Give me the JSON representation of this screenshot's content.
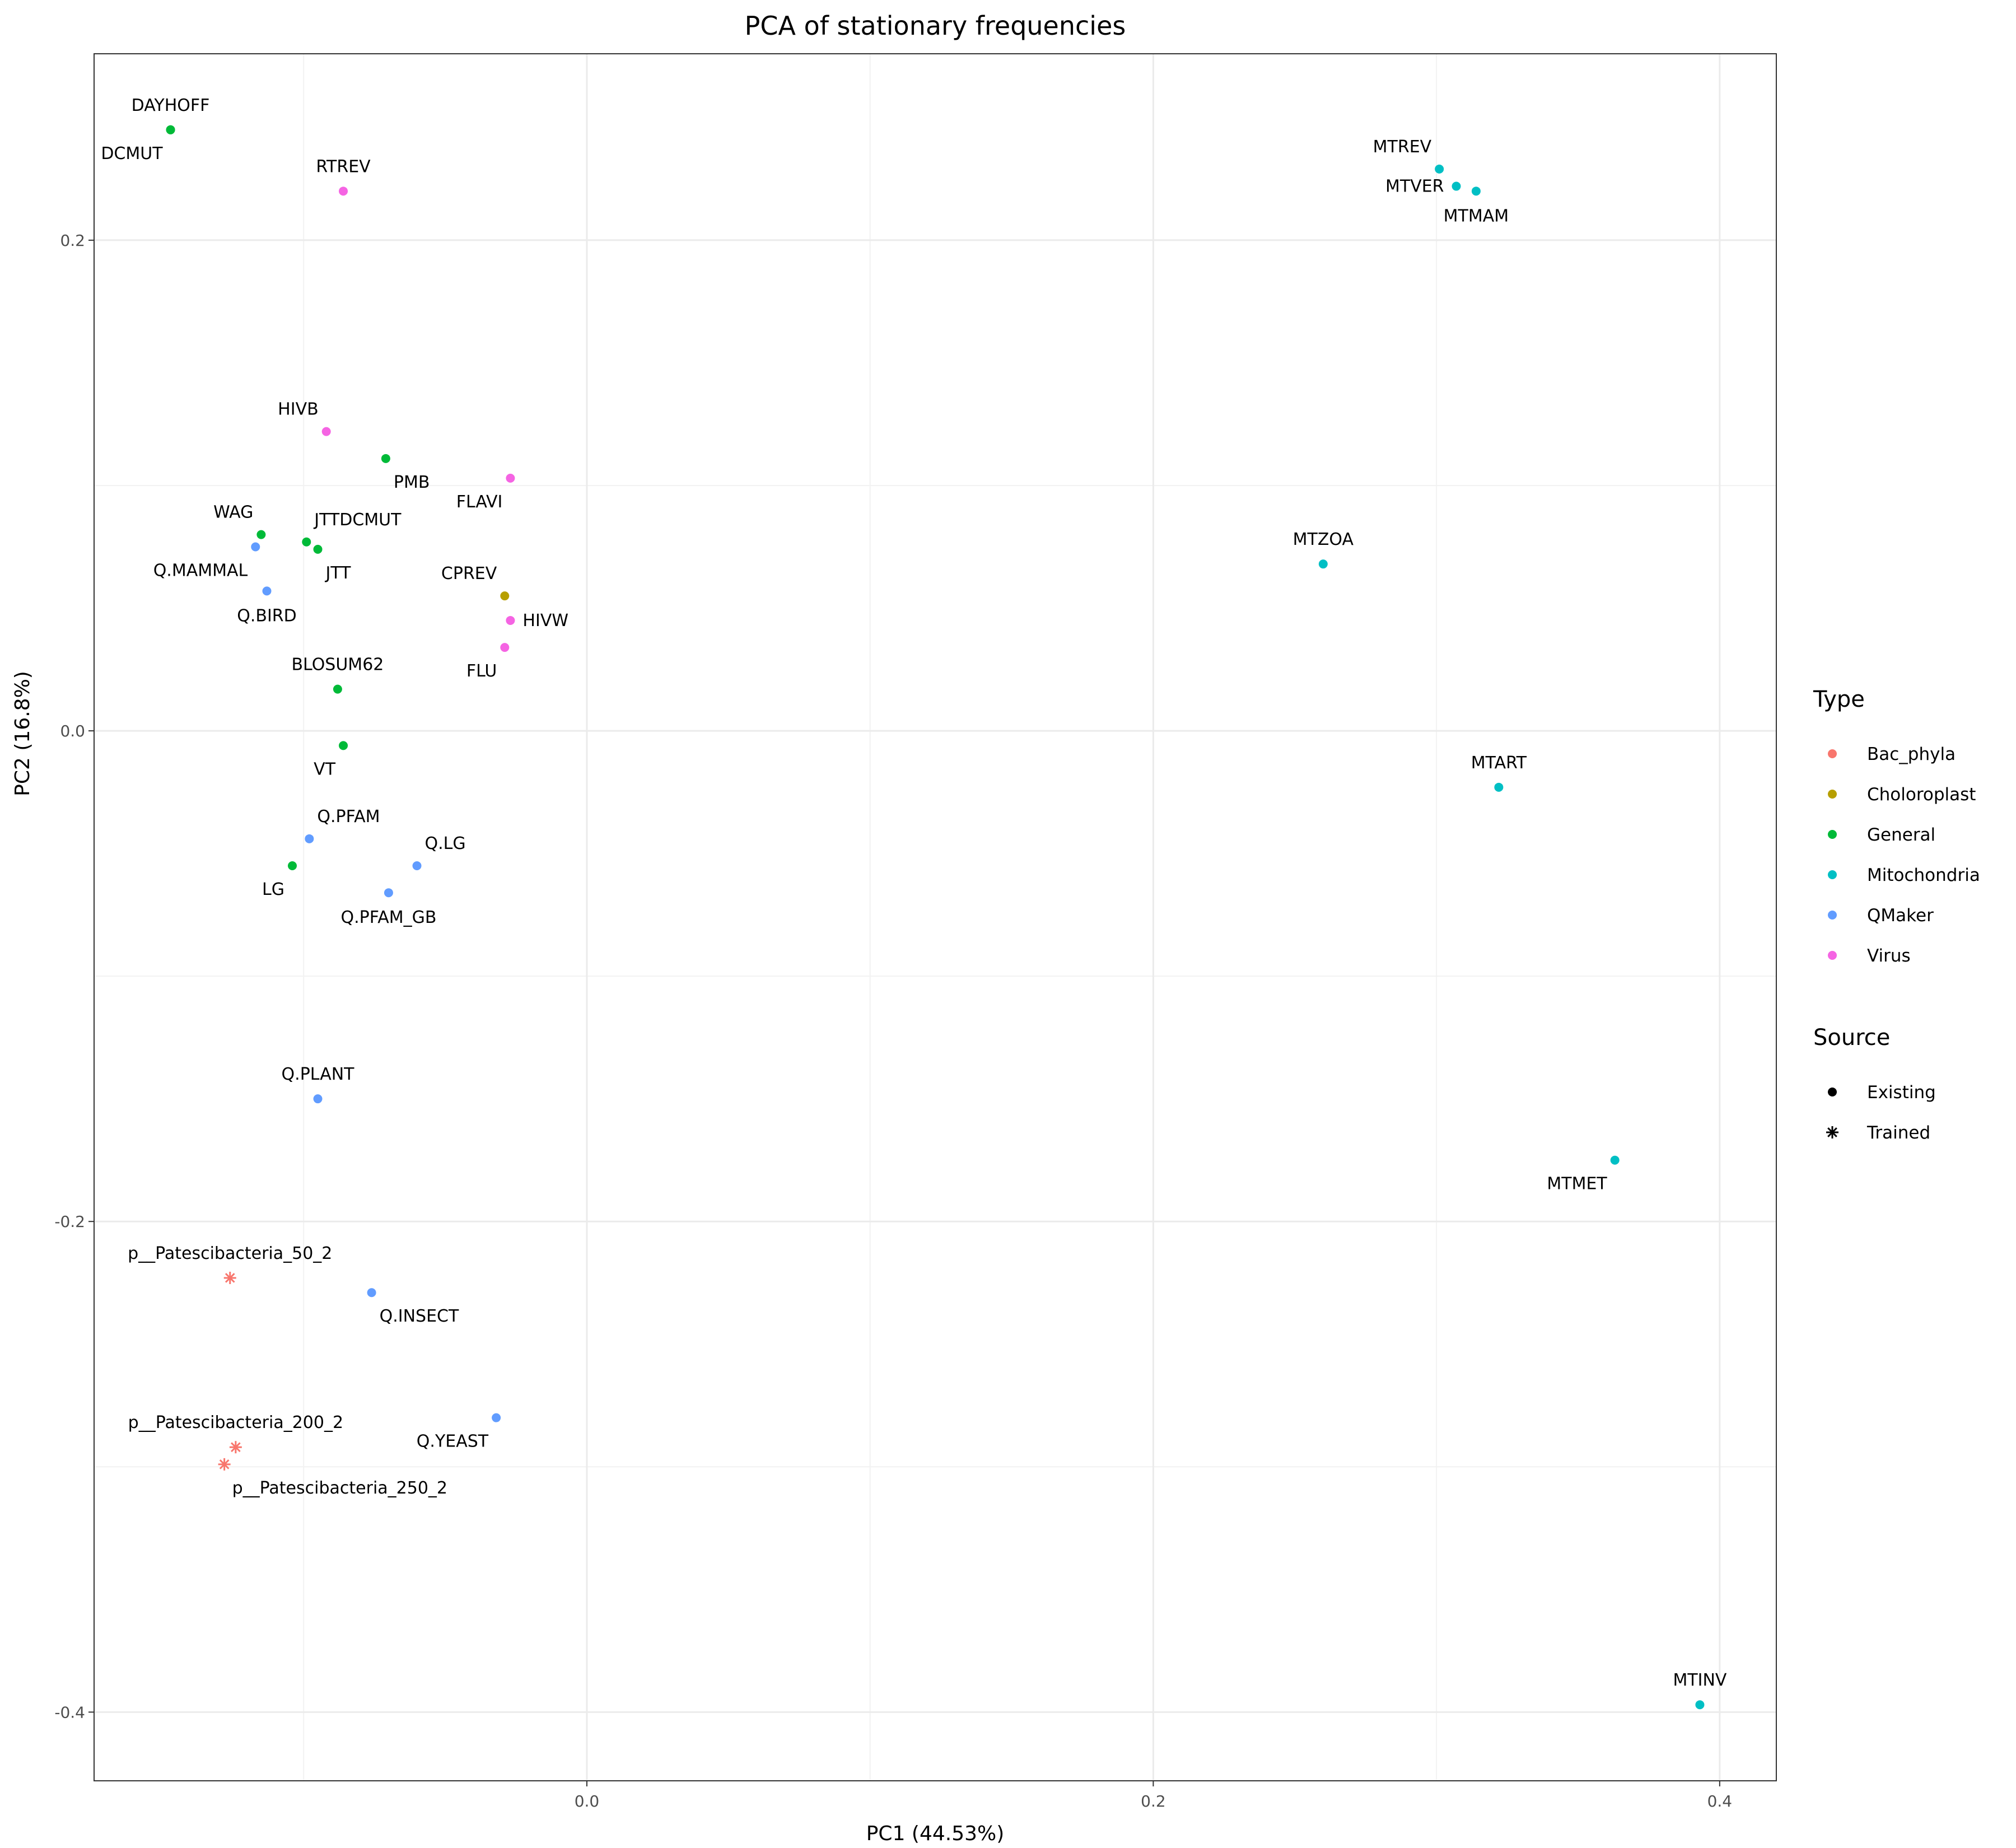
{
  "chart_data": {
    "type": "scatter",
    "title": "PCA of stationary frequencies",
    "xlabel": "PC1 (44.53%)",
    "ylabel": "PC2 (16.8%)",
    "xlim": [
      -0.174,
      0.42
    ],
    "ylim": [
      -0.428,
      0.276
    ],
    "x_ticks": [
      {
        "v": 0,
        "label": "0.0"
      },
      {
        "v": 0.2,
        "label": "0.2"
      },
      {
        "v": 0.4,
        "label": "0.4"
      }
    ],
    "y_ticks": [
      {
        "v": 0.2,
        "label": "0.2"
      },
      {
        "v": 0,
        "label": "0.0"
      },
      {
        "v": -0.2,
        "label": "-0.2"
      },
      {
        "v": -0.4,
        "label": "-0.4"
      }
    ],
    "x_minor": [
      -0.1,
      0.1,
      0.3
    ],
    "y_minor": [
      0.1,
      -0.1,
      -0.3
    ],
    "grid": true,
    "legend_position": "right",
    "type_legend": {
      "title": "Type",
      "items": [
        {
          "name": "Bac_phyla",
          "color": "#F8766D"
        },
        {
          "name": "Choloroplast",
          "color": "#B79F00"
        },
        {
          "name": "General",
          "color": "#00BA38"
        },
        {
          "name": "Mitochondria",
          "color": "#00BFC4"
        },
        {
          "name": "QMaker",
          "color": "#619CFF"
        },
        {
          "name": "Virus",
          "color": "#F564E3"
        }
      ]
    },
    "source_legend": {
      "title": "Source",
      "items": [
        {
          "name": "Existing",
          "shape": "dot"
        },
        {
          "name": "Trained",
          "shape": "asterisk"
        }
      ]
    },
    "points": [
      {
        "label": "DAYHOFF",
        "x": -0.147,
        "y": 0.245,
        "type": "General",
        "source": "Existing",
        "pos": "above"
      },
      {
        "label": "DCMUT",
        "x": -0.147,
        "y": 0.245,
        "type": "General",
        "source": "Existing",
        "pos": "below-left"
      },
      {
        "label": "RTREV",
        "x": -0.086,
        "y": 0.22,
        "type": "Virus",
        "source": "Existing",
        "pos": "above"
      },
      {
        "label": "HIVB",
        "x": -0.092,
        "y": 0.122,
        "type": "Virus",
        "source": "Existing",
        "pos": "above-left"
      },
      {
        "label": "PMB",
        "x": -0.071,
        "y": 0.111,
        "type": "General",
        "source": "Existing",
        "pos": "below-right"
      },
      {
        "label": "FLAVI",
        "x": -0.027,
        "y": 0.103,
        "type": "Virus",
        "source": "Existing",
        "pos": "below-left"
      },
      {
        "label": "WAG",
        "x": -0.115,
        "y": 0.08,
        "type": "General",
        "source": "Existing",
        "pos": "above-left"
      },
      {
        "label": "JTTDCMUT",
        "x": -0.099,
        "y": 0.077,
        "type": "General",
        "source": "Existing",
        "pos": "above-right"
      },
      {
        "label": "JTT",
        "x": -0.095,
        "y": 0.074,
        "type": "General",
        "source": "Existing",
        "pos": "below-right"
      },
      {
        "label": "Q.MAMMAL",
        "x": -0.117,
        "y": 0.075,
        "type": "QMaker",
        "source": "Existing",
        "pos": "below-left"
      },
      {
        "label": "Q.BIRD",
        "x": -0.113,
        "y": 0.057,
        "type": "QMaker",
        "source": "Existing",
        "pos": "below"
      },
      {
        "label": "CPREV",
        "x": -0.029,
        "y": 0.055,
        "type": "Choloroplast",
        "source": "Existing",
        "pos": "above-left"
      },
      {
        "label": "HIVW",
        "x": -0.027,
        "y": 0.045,
        "type": "Virus",
        "source": "Existing",
        "pos": "right"
      },
      {
        "label": "FLU",
        "x": -0.029,
        "y": 0.034,
        "type": "Virus",
        "source": "Existing",
        "pos": "below-left"
      },
      {
        "label": "BLOSUM62",
        "x": -0.088,
        "y": 0.017,
        "type": "General",
        "source": "Existing",
        "pos": "above"
      },
      {
        "label": "VT",
        "x": -0.086,
        "y": -0.006,
        "type": "General",
        "source": "Existing",
        "pos": "below-left"
      },
      {
        "label": "Q.PFAM",
        "x": -0.098,
        "y": -0.044,
        "type": "QMaker",
        "source": "Existing",
        "pos": "above-right"
      },
      {
        "label": "Q.LG",
        "x": -0.06,
        "y": -0.055,
        "type": "QMaker",
        "source": "Existing",
        "pos": "above-right"
      },
      {
        "label": "LG",
        "x": -0.104,
        "y": -0.055,
        "type": "General",
        "source": "Existing",
        "pos": "below-left"
      },
      {
        "label": "Q.PFAM_GB",
        "x": -0.07,
        "y": -0.066,
        "type": "QMaker",
        "source": "Existing",
        "pos": "below"
      },
      {
        "label": "Q.PLANT",
        "x": -0.095,
        "y": -0.15,
        "type": "QMaker",
        "source": "Existing",
        "pos": "above"
      },
      {
        "label": "Q.INSECT",
        "x": -0.076,
        "y": -0.229,
        "type": "QMaker",
        "source": "Existing",
        "pos": "below-right"
      },
      {
        "label": "Q.YEAST",
        "x": -0.032,
        "y": -0.28,
        "type": "QMaker",
        "source": "Existing",
        "pos": "below-left"
      },
      {
        "label": "p__Patescibacteria_50_2",
        "x": -0.126,
        "y": -0.223,
        "type": "Bac_phyla",
        "source": "Trained",
        "pos": "above"
      },
      {
        "label": "p__Patescibacteria_200_2",
        "x": -0.124,
        "y": -0.292,
        "type": "Bac_phyla",
        "source": "Trained",
        "pos": "above"
      },
      {
        "label": "p__Patescibacteria_250_2",
        "x": -0.128,
        "y": -0.299,
        "type": "Bac_phyla",
        "source": "Trained",
        "pos": "below-right"
      },
      {
        "label": "MTREV",
        "x": 0.301,
        "y": 0.229,
        "type": "Mitochondria",
        "source": "Existing",
        "pos": "above-left"
      },
      {
        "label": "MTVER",
        "x": 0.307,
        "y": 0.222,
        "type": "Mitochondria",
        "source": "Existing",
        "pos": "left"
      },
      {
        "label": "MTMAM",
        "x": 0.314,
        "y": 0.22,
        "type": "Mitochondria",
        "source": "Existing",
        "pos": "below"
      },
      {
        "label": "MTZOA",
        "x": 0.26,
        "y": 0.068,
        "type": "Mitochondria",
        "source": "Existing",
        "pos": "above"
      },
      {
        "label": "MTART",
        "x": 0.322,
        "y": -0.023,
        "type": "Mitochondria",
        "source": "Existing",
        "pos": "above"
      },
      {
        "label": "MTMET",
        "x": 0.363,
        "y": -0.175,
        "type": "Mitochondria",
        "source": "Existing",
        "pos": "below-left"
      },
      {
        "label": "MTINV",
        "x": 0.393,
        "y": -0.397,
        "type": "Mitochondria",
        "source": "Existing",
        "pos": "above"
      }
    ]
  }
}
